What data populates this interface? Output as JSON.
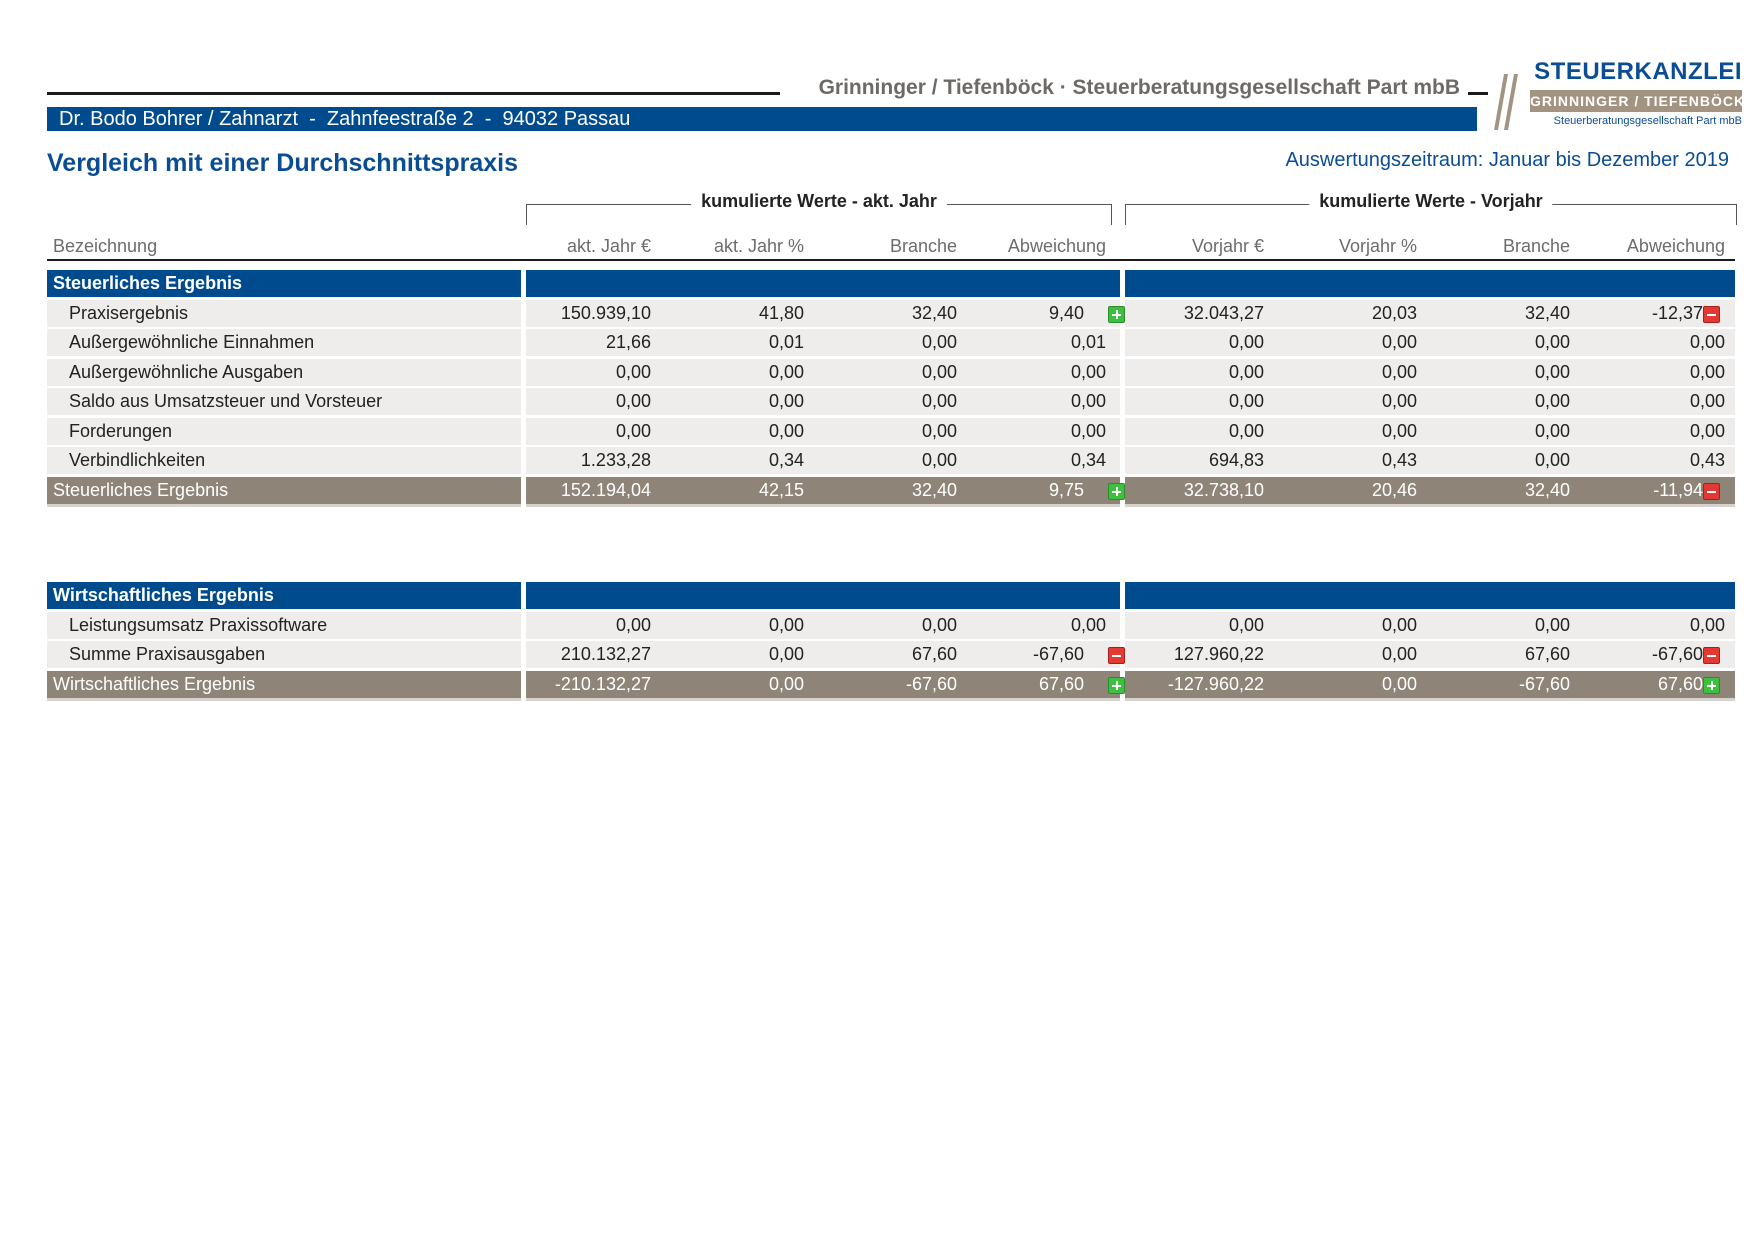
{
  "header": {
    "firm_name": "Grinninger / Tiefenböck · Steuerberatungsgesellschaft Part mbB",
    "client_line": "Dr. Bodo Bohrer / Zahnarzt  -  Zahnfeestraße 2  -  94032 Passau",
    "logo": {
      "top": "STEUERKANZLEI",
      "mid": "GRINNINGER / TIEFENBÖCK",
      "bottom": "Steuerberatungsgesellschaft Part mbB"
    },
    "title": "Vergleich mit einer Durchschnittspraxis",
    "period": "Auswertungszeitraum: Januar bis Dezember 2019"
  },
  "groups": {
    "current": "kumulierte Werte - akt. Jahr",
    "previous": "kumulierte Werte - Vorjahr"
  },
  "columns": [
    "Bezeichnung",
    "akt. Jahr €",
    "akt. Jahr %",
    "Branche",
    "Abweichung",
    "Vorjahr €",
    "Vorjahr %",
    "Branche",
    "Abweichung"
  ],
  "colors": {
    "blue": "#004b8d",
    "total_bg": "#8e8478",
    "row_bg": "#eeedeb",
    "plus": "#3fbf3f",
    "minus": "#e23a32"
  },
  "sections": [
    {
      "title": "Steuerliches Ergebnis",
      "rows": [
        {
          "label": "Praxisergebnis",
          "v": [
            "150.939,10",
            "41,80",
            "32,40",
            "9,40",
            "32.043,27",
            "20,03",
            "32,40",
            "-12,37"
          ],
          "ind_cur": "plus",
          "ind_prev": "minus"
        },
        {
          "label": "Außergewöhnliche Einnahmen",
          "v": [
            "21,66",
            "0,01",
            "0,00",
            "0,01",
            "0,00",
            "0,00",
            "0,00",
            "0,00"
          ],
          "ind_cur": null,
          "ind_prev": null
        },
        {
          "label": "Außergewöhnliche Ausgaben",
          "v": [
            "0,00",
            "0,00",
            "0,00",
            "0,00",
            "0,00",
            "0,00",
            "0,00",
            "0,00"
          ],
          "ind_cur": null,
          "ind_prev": null
        },
        {
          "label": "Saldo aus Umsatzsteuer und Vorsteuer",
          "v": [
            "0,00",
            "0,00",
            "0,00",
            "0,00",
            "0,00",
            "0,00",
            "0,00",
            "0,00"
          ],
          "ind_cur": null,
          "ind_prev": null
        },
        {
          "label": "Forderungen",
          "v": [
            "0,00",
            "0,00",
            "0,00",
            "0,00",
            "0,00",
            "0,00",
            "0,00",
            "0,00"
          ],
          "ind_cur": null,
          "ind_prev": null
        },
        {
          "label": "Verbindlichkeiten",
          "v": [
            "1.233,28",
            "0,34",
            "0,00",
            "0,34",
            "694,83",
            "0,43",
            "0,00",
            "0,43"
          ],
          "ind_cur": null,
          "ind_prev": null
        }
      ],
      "total": {
        "label": "Steuerliches Ergebnis",
        "v": [
          "152.194,04",
          "42,15",
          "32,40",
          "9,75",
          "32.738,10",
          "20,46",
          "32,40",
          "-11,94"
        ],
        "ind_cur": "plus",
        "ind_prev": "minus"
      }
    },
    {
      "title": "Wirtschaftliches Ergebnis",
      "rows": [
        {
          "label": "Leistungsumsatz Praxissoftware",
          "v": [
            "0,00",
            "0,00",
            "0,00",
            "0,00",
            "0,00",
            "0,00",
            "0,00",
            "0,00"
          ],
          "ind_cur": null,
          "ind_prev": null
        },
        {
          "label": "Summe Praxisausgaben",
          "v": [
            "210.132,27",
            "0,00",
            "67,60",
            "-67,60",
            "127.960,22",
            "0,00",
            "67,60",
            "-67,60"
          ],
          "ind_cur": "minus",
          "ind_prev": "minus"
        }
      ],
      "total": {
        "label": "Wirtschaftliches Ergebnis",
        "v": [
          "-210.132,27",
          "0,00",
          "-67,60",
          "67,60",
          "-127.960,22",
          "0,00",
          "-67,60",
          "67,60"
        ],
        "ind_cur": "plus",
        "ind_prev": "plus"
      }
    }
  ]
}
